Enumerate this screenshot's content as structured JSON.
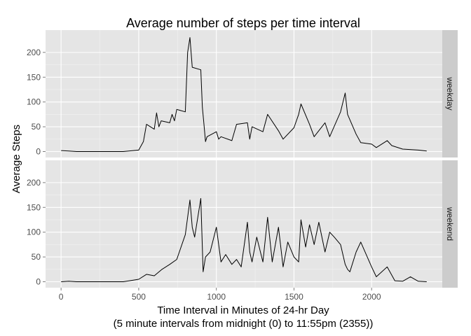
{
  "chart_data": {
    "type": "line",
    "title": "Average number of steps per time interval",
    "xlabel_line1": "Time Interval in Minutes of 24-hr Day",
    "xlabel_line2": "(5 minute intervals from midnight (0) to 11:55pm (2355))",
    "ylabel": "Average Steps",
    "xlim": [
      -100,
      2455
    ],
    "ylim": [
      -12,
      245
    ],
    "x_ticks": [
      0,
      500,
      1000,
      1500,
      2000
    ],
    "y_ticks": [
      0,
      50,
      100,
      150,
      200
    ],
    "grid": true,
    "facet_strip_position": "right",
    "panels": [
      {
        "label": "weekday",
        "x": [
          0,
          50,
          100,
          200,
          300,
          400,
          500,
          530,
          550,
          600,
          615,
          630,
          645,
          700,
          715,
          730,
          745,
          800,
          815,
          830,
          845,
          900,
          910,
          920,
          930,
          940,
          1000,
          1015,
          1030,
          1100,
          1130,
          1200,
          1215,
          1230,
          1300,
          1330,
          1400,
          1430,
          1500,
          1530,
          1545,
          1600,
          1630,
          1700,
          1730,
          1800,
          1830,
          1845,
          1900,
          1930,
          2000,
          2030,
          2100,
          2130,
          2200,
          2300,
          2355
        ],
        "y": [
          2,
          1,
          0,
          0,
          0,
          0,
          3,
          20,
          55,
          45,
          78,
          50,
          62,
          58,
          75,
          62,
          85,
          80,
          200,
          230,
          170,
          165,
          90,
          55,
          20,
          30,
          40,
          25,
          30,
          22,
          55,
          58,
          25,
          50,
          40,
          75,
          42,
          25,
          48,
          75,
          96,
          55,
          30,
          58,
          30,
          80,
          118,
          75,
          35,
          18,
          15,
          8,
          22,
          12,
          5,
          3,
          1
        ]
      },
      {
        "label": "weekend",
        "x": [
          0,
          50,
          100,
          200,
          300,
          400,
          500,
          550,
          600,
          650,
          700,
          745,
          800,
          830,
          845,
          860,
          900,
          915,
          930,
          960,
          1000,
          1030,
          1060,
          1100,
          1130,
          1160,
          1200,
          1215,
          1230,
          1260,
          1300,
          1330,
          1360,
          1400,
          1430,
          1460,
          1500,
          1530,
          1545,
          1575,
          1600,
          1630,
          1660,
          1700,
          1730,
          1760,
          1800,
          1830,
          1845,
          1860,
          1900,
          1930,
          2000,
          2030,
          2100,
          2150,
          2200,
          2250,
          2300,
          2355
        ],
        "y": [
          0,
          1,
          0,
          0,
          0,
          0,
          5,
          15,
          12,
          25,
          35,
          45,
          95,
          165,
          110,
          90,
          168,
          20,
          50,
          60,
          110,
          40,
          55,
          35,
          45,
          30,
          120,
          60,
          40,
          90,
          40,
          130,
          40,
          110,
          30,
          80,
          50,
          40,
          125,
          70,
          115,
          75,
          120,
          60,
          100,
          90,
          75,
          35,
          25,
          20,
          60,
          80,
          30,
          10,
          30,
          2,
          1,
          10,
          1,
          0
        ]
      }
    ]
  }
}
